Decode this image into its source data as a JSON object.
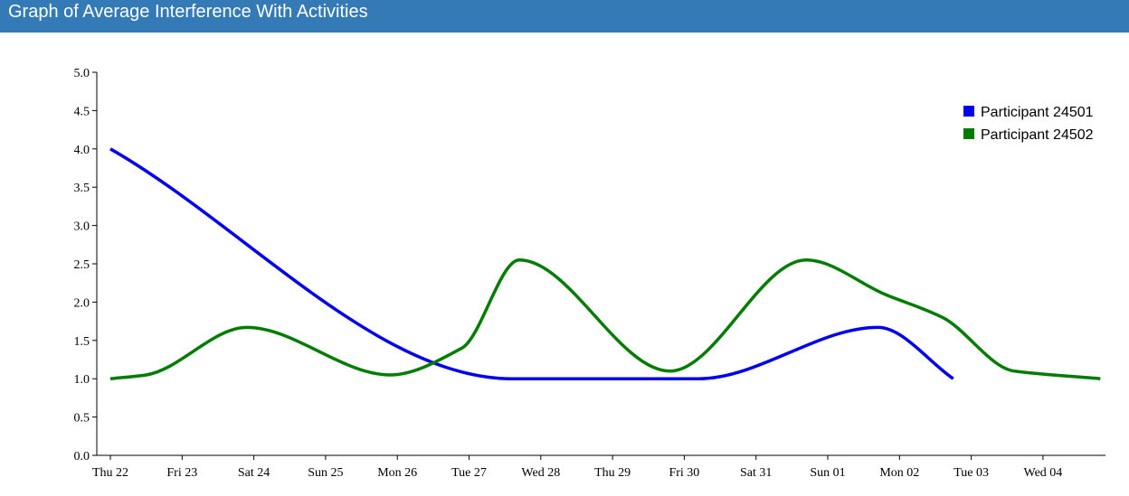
{
  "header": {
    "title": "Graph of Average Interference With Activities"
  },
  "colors": {
    "header_bg": "#337ab7",
    "series_24501": "#0000ee",
    "series_24502": "#007d00"
  },
  "chart_data": {
    "type": "line",
    "title": "Graph of Average Interference With Activities",
    "xlabel": "",
    "ylabel": "",
    "ylim": [
      0,
      5
    ],
    "y_ticks": [
      "0.0",
      "0.5",
      "1.0",
      "1.5",
      "2.0",
      "2.5",
      "3.0",
      "3.5",
      "4.0",
      "4.5",
      "5.0"
    ],
    "categories": [
      "Thu 22",
      "Fri 23",
      "Sat 24",
      "Sun 25",
      "Mon 26",
      "Tue 27",
      "Wed 28",
      "Thu 29",
      "Fri 30",
      "Sat 31",
      "Sun 01",
      "Mon 02",
      "Tue 03",
      "Wed 04"
    ],
    "grid": false,
    "legend_position": "top-right",
    "series": [
      {
        "name": "Participant 24501",
        "color": "#0000ee",
        "points": [
          {
            "x": 0,
            "y": 4.0
          },
          {
            "x": 5.6,
            "y": 1.0
          },
          {
            "x": 8.2,
            "y": 1.0
          },
          {
            "x": 10.7,
            "y": 1.67
          },
          {
            "x": 11.75,
            "y": 1.0
          }
        ]
      },
      {
        "name": "Participant 24502",
        "color": "#007d00",
        "points": [
          {
            "x": 0,
            "y": 1.0
          },
          {
            "x": 0.5,
            "y": 1.05
          },
          {
            "x": 1.9,
            "y": 1.67
          },
          {
            "x": 3.9,
            "y": 1.05
          },
          {
            "x": 4.9,
            "y": 1.4
          },
          {
            "x": 5.7,
            "y": 2.55
          },
          {
            "x": 7.8,
            "y": 1.1
          },
          {
            "x": 9.7,
            "y": 2.55
          },
          {
            "x": 10.8,
            "y": 2.1
          },
          {
            "x": 11.6,
            "y": 1.8
          },
          {
            "x": 12.6,
            "y": 1.1
          },
          {
            "x": 13.8,
            "y": 1.0
          }
        ]
      }
    ]
  }
}
